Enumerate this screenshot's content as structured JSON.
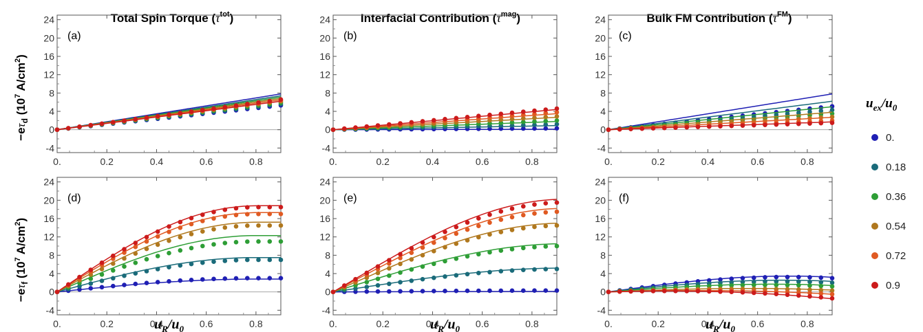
{
  "chart_data": {
    "type": "scatter",
    "column_titles": [
      {
        "text": "Total Spin Torque (",
        "symbol": "τ",
        "sup": "tot",
        "close": ")"
      },
      {
        "text": "Interfacial Contribution (",
        "symbol": "τ",
        "sup": "mag",
        "close": ")"
      },
      {
        "text": "Bulk FM Contribution (",
        "symbol": "τ",
        "sup": "FM",
        "close": ")"
      }
    ],
    "row_ylabels": [
      {
        "prefix": "−e",
        "symbol": "τ",
        "sub": "d",
        "unit": " (10",
        "exp": "7",
        "unit2": " A/cm",
        "exp2": "2",
        "close": ")"
      },
      {
        "prefix": "−e",
        "symbol": "τ",
        "sub": "f",
        "unit": " (10",
        "exp": "7",
        "unit2": " A/cm",
        "exp2": "2",
        "close": ")"
      }
    ],
    "xlabel": {
      "main": "u",
      "sub_R": "R",
      "slash": "/",
      "main2": "u",
      "sub_0": "0"
    },
    "xlim": [
      0,
      0.9
    ],
    "ylim": [
      -5,
      25
    ],
    "x_ticks": [
      "0.",
      "0.2",
      "0.4",
      "0.6",
      "0.8"
    ],
    "x_tick_values": [
      0,
      0.2,
      0.4,
      0.6,
      0.8
    ],
    "y_ticks": [
      "-4",
      "0",
      "4",
      "8",
      "12",
      "16",
      "20",
      "24"
    ],
    "y_tick_values": [
      -4,
      0,
      4,
      8,
      12,
      16,
      20,
      24
    ],
    "legend": {
      "title_main": "u",
      "title_sub": "ex",
      "title_slash": "/",
      "title_main2": "u",
      "title_sub2": "0",
      "placement": "right",
      "entries": [
        "0.",
        "0.18",
        "0.36",
        "0.54",
        "0.72",
        "0.9"
      ]
    },
    "series_colors": [
      "#1f1fb4",
      "#1a6b7a",
      "#2e9e36",
      "#b0781e",
      "#e05a22",
      "#cc1b1b"
    ],
    "panels": [
      {
        "label": "(a)",
        "row": 0,
        "col": 0,
        "points_end": [
          5.3,
          5.6,
          5.9,
          6.2,
          6.4,
          6.6
        ],
        "lines_end": [
          7.8,
          7.4,
          7.1,
          6.8,
          6.5,
          6.2
        ]
      },
      {
        "label": "(b)",
        "row": 0,
        "col": 1,
        "points_end": [
          0.3,
          1.2,
          2.0,
          2.9,
          3.8,
          4.6
        ],
        "lines_end": [
          0.1,
          0.9,
          1.8,
          2.7,
          3.5,
          4.4
        ]
      },
      {
        "label": "(c)",
        "row": 0,
        "col": 2,
        "points_end": [
          5.1,
          4.3,
          3.5,
          2.8,
          2.0,
          1.5
        ],
        "lines_end": [
          7.8,
          6.2,
          5.0,
          3.8,
          2.7,
          1.7
        ]
      },
      {
        "label": "(d)",
        "row": 1,
        "col": 0,
        "points_end": [
          3.0,
          7.0,
          11.0,
          14.5,
          17.0,
          18.5
        ],
        "lines_end": [
          2.8,
          7.5,
          12.3,
          15.2,
          17.3,
          18.8
        ]
      },
      {
        "label": "(e)",
        "row": 1,
        "col": 1,
        "points_end": [
          0.3,
          5.0,
          10.0,
          14.5,
          17.5,
          19.5
        ],
        "lines_end": [
          0.1,
          5.2,
          10.5,
          15.0,
          18.2,
          20.2
        ]
      },
      {
        "label": "(f)",
        "row": 1,
        "col": 2,
        "points_end": [
          3.0,
          2.0,
          1.2,
          0.3,
          -0.5,
          -1.4
        ],
        "lines_end": [
          3.2,
          2.3,
          1.4,
          0.4,
          -0.5,
          -1.5
        ]
      }
    ]
  }
}
